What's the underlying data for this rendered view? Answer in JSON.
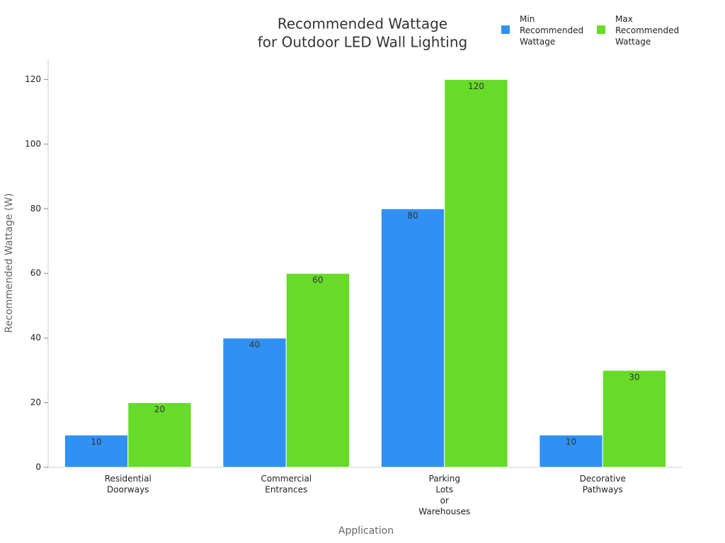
{
  "chart_data": {
    "type": "bar",
    "title": [
      "Recommended Wattage",
      "for Outdoor LED Wall Lighting"
    ],
    "x_label": "Application",
    "y_label": "Recommended Wattage (W)",
    "categories": [
      "Residential Doorways",
      "Commercial Entrances",
      "Parking Lots or Warehouses",
      "Decorative Pathways"
    ],
    "series": [
      {
        "name": "Min Recommended Wattage",
        "color": "#3091f2",
        "values": [
          10,
          40,
          80,
          10
        ]
      },
      {
        "name": "Max Recommended Wattage",
        "color": "#66db28",
        "values": [
          20,
          60,
          120,
          30
        ]
      }
    ],
    "ylim": [
      0,
      126
    ],
    "yticks": [
      0,
      20,
      40,
      60,
      80,
      100,
      120
    ],
    "legend": "top-right"
  }
}
